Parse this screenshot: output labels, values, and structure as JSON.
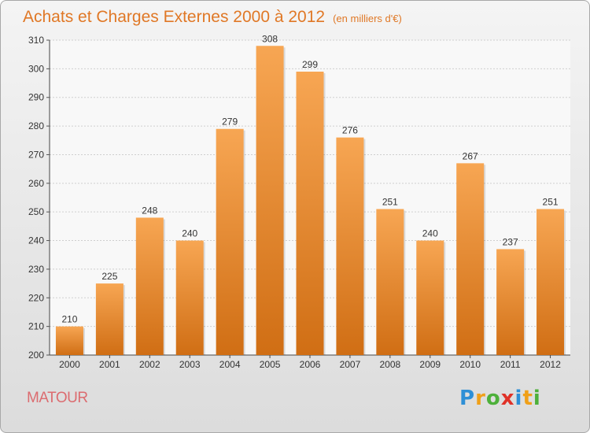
{
  "header": {
    "title": "Achats et Charges Externes 2000 à 2012",
    "subtitle": "(en milliers d'€)"
  },
  "footer": {
    "city": "MATOUR",
    "logo_letters": [
      "P",
      "r",
      "o",
      "x",
      "i",
      "t",
      "i"
    ],
    "logo_colors": [
      "#2e8fd6",
      "#f0a019",
      "#4db03a",
      "#e03228",
      "#2e8fd6",
      "#f0a019",
      "#4db03a"
    ]
  },
  "colors": {
    "bar_top": "#f7a653",
    "bar_bottom": "#d06e14",
    "accent": "#e07826",
    "grid": "#cfcfcf"
  },
  "chart_data": {
    "type": "bar",
    "title": "Achats et Charges Externes 2000 à 2012",
    "subtitle": "(en milliers d'€)",
    "categories": [
      "2000",
      "2001",
      "2002",
      "2003",
      "2004",
      "2005",
      "2006",
      "2007",
      "2008",
      "2009",
      "2010",
      "2011",
      "2012"
    ],
    "values": [
      210,
      225,
      248,
      240,
      279,
      308,
      299,
      276,
      251,
      240,
      267,
      237,
      251
    ],
    "ylim": [
      200,
      310
    ],
    "yticks": [
      200,
      210,
      220,
      230,
      240,
      250,
      260,
      270,
      280,
      290,
      300,
      310
    ],
    "grid": true,
    "xlabel": "",
    "ylabel": ""
  }
}
